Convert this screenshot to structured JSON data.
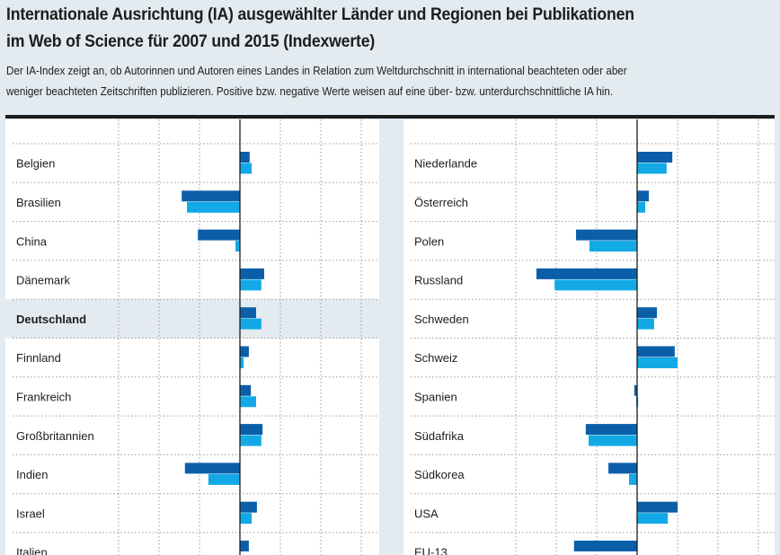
{
  "header": {
    "title_line1": "Internationale Ausrichtung (IA) ausgewählter Länder und Regionen bei Publikationen",
    "title_line2": "im Web of Science für 2007 und 2015 (Indexwerte)",
    "desc_line1": "Der IA-Index zeigt an, ob Autorinnen und Autoren eines Landes in Relation zum Weltdurchschnitt in international beachteten oder aber",
    "desc_line2": "weniger beachteten Zeitschriften publizieren. Positive bzw. negative Werte weisen auf eine über- bzw. unterdurchschnittliche IA hin."
  },
  "chart_data": [
    {
      "type": "bar",
      "orientation": "horizontal",
      "xlim": [
        -3,
        3
      ],
      "grid": true,
      "highlight": "Deutschland",
      "categories": [
        "Belgien",
        "Brasilien",
        "China",
        "Dänemark",
        "Deutschland",
        "Finnland",
        "Frankreich",
        "Großbritannien",
        "Indien",
        "Israel",
        "Italien"
      ],
      "series": [
        {
          "color": "#0b5fa8",
          "values": [
            0.24,
            -1.44,
            -1.04,
            0.6,
            0.4,
            0.22,
            0.27,
            0.56,
            -1.36,
            0.42,
            0.22
          ]
        },
        {
          "color": "#12a9e6",
          "values": [
            0.29,
            -1.31,
            -0.11,
            0.53,
            0.53,
            0.09,
            0.4,
            0.53,
            -0.78,
            0.29,
            null
          ]
        }
      ]
    },
    {
      "type": "bar",
      "orientation": "horizontal",
      "xlim": [
        -3,
        3
      ],
      "grid": true,
      "categories": [
        "Niederlande",
        "Österreich",
        "Polen",
        "Russland",
        "Schweden",
        "Schweiz",
        "Spanien",
        "Südafrika",
        "Südkorea",
        "USA",
        "EU-13"
      ],
      "series": [
        {
          "color": "#0b5fa8",
          "values": [
            0.87,
            0.29,
            -1.51,
            -2.49,
            0.49,
            0.93,
            -0.07,
            -1.27,
            -0.71,
            1.0,
            -1.56
          ]
        },
        {
          "color": "#12a9e6",
          "values": [
            0.73,
            0.2,
            -1.18,
            -2.04,
            0.42,
            1.0,
            -0.02,
            -1.2,
            -0.2,
            0.76,
            null
          ]
        }
      ]
    }
  ]
}
